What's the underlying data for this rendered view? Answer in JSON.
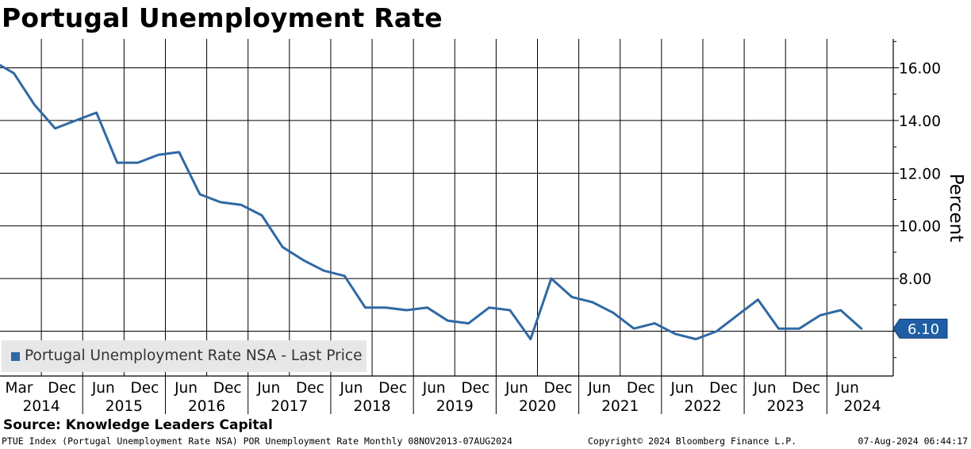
{
  "title": "Portugal Unemployment Rate",
  "source": "Source: Knowledge Leaders Capital",
  "footer": {
    "left": "PTUE Index (Portugal Unemployment Rate NSA) POR Unemployment Rate  Monthly 08NOV2013-07AUG2024",
    "middle": "Copyright© 2024 Bloomberg Finance L.P.",
    "right": "07-Aug-2024 06:44:17"
  },
  "colors": {
    "line": "#2f69a3",
    "last_price_box": "#1f5ea5",
    "legend_bg": "#e7e7e7"
  },
  "chart_data": {
    "type": "line",
    "ylabel": "Percent",
    "ylim": [
      4.3,
      17.1
    ],
    "yticks": [
      {
        "value": 16,
        "label": "16.00"
      },
      {
        "value": 14,
        "label": "14.00"
      },
      {
        "value": 12,
        "label": "12.00"
      },
      {
        "value": 10,
        "label": "10.00"
      },
      {
        "value": 8,
        "label": "8.00"
      }
    ],
    "grid": true,
    "y_axis_position": "right",
    "legend_position": "bottom-left",
    "x_month_labels": [
      "Mar",
      "Dec",
      "Jun",
      "Dec",
      "Jun",
      "Dec",
      "Jun",
      "Dec",
      "Jun",
      "Dec",
      "Jun",
      "Dec",
      "Jun",
      "Dec",
      "Jun",
      "Dec",
      "Jun",
      "Dec",
      "Jun",
      "Dec",
      "Jun"
    ],
    "x_year_labels": [
      "2014",
      "2015",
      "2016",
      "2017",
      "2018",
      "2019",
      "2020",
      "2021",
      "2022",
      "2023",
      "2024"
    ],
    "series": [
      {
        "name": "Portugal Unemployment Rate NSA - Last Price",
        "x": [
          "2014-01",
          "2014-03",
          "2014-06",
          "2014-09",
          "2014-12",
          "2015-03",
          "2015-06",
          "2015-09",
          "2015-12",
          "2016-03",
          "2016-06",
          "2016-09",
          "2016-12",
          "2017-03",
          "2017-06",
          "2017-09",
          "2017-12",
          "2018-03",
          "2018-06",
          "2018-09",
          "2018-12",
          "2019-03",
          "2019-06",
          "2019-09",
          "2019-12",
          "2020-03",
          "2020-06",
          "2020-09",
          "2020-12",
          "2021-03",
          "2021-06",
          "2021-09",
          "2021-12",
          "2022-03",
          "2022-06",
          "2022-09",
          "2022-12",
          "2023-03",
          "2023-06",
          "2023-09",
          "2023-12",
          "2024-03",
          "2024-06"
        ],
        "values": [
          16.1,
          15.8,
          14.6,
          13.7,
          14.0,
          14.3,
          12.4,
          12.4,
          12.7,
          12.8,
          11.2,
          10.9,
          10.8,
          10.4,
          9.2,
          8.7,
          8.3,
          8.1,
          6.9,
          6.9,
          6.8,
          6.9,
          6.4,
          6.3,
          6.9,
          6.8,
          5.7,
          8.0,
          7.3,
          7.1,
          6.7,
          6.1,
          6.3,
          5.9,
          5.7,
          6.0,
          6.6,
          7.2,
          6.1,
          6.1,
          6.6,
          6.8,
          6.1
        ]
      }
    ],
    "last_price_label": "6.10"
  }
}
